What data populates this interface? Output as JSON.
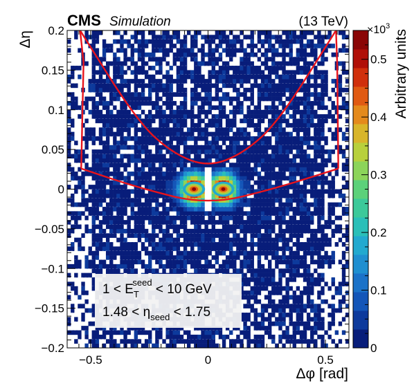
{
  "header": {
    "experiment": "CMS",
    "tag": "Simulation",
    "energy": "(13 TeV)"
  },
  "legend_box": {
    "line1": {
      "pre": "1 < E",
      "sub": "T",
      "sup": "seed",
      "post": " < 10 GeV"
    },
    "line2": {
      "pre": "1.48 < η",
      "sub": "seed",
      "post": " < 1.75"
    }
  },
  "colorbar": {
    "label": "Arbitrary units",
    "multiplier": "×10",
    "multiplier_exp": "3",
    "ticks": [
      "0",
      "0.1",
      "0.2",
      "0.3",
      "0.4",
      "0.5"
    ],
    "tick_values": [
      0,
      0.1,
      0.2,
      0.3,
      0.4,
      0.5
    ],
    "range": [
      0,
      0.55
    ],
    "colors": [
      "#081d7a",
      "#0d3a9c",
      "#1456b8",
      "#1b72c8",
      "#1f8fd0",
      "#22a9cf",
      "#2abfb8",
      "#3cc99a",
      "#5cd17a",
      "#8cd45a",
      "#b8d03c",
      "#d8b52a",
      "#e48a1c",
      "#e05a12",
      "#d0300c",
      "#b01008",
      "#8a0606"
    ]
  },
  "chart_data": {
    "type": "heatmap",
    "xlabel": "Δφ [rad]",
    "ylabel": "Δη",
    "xlim": [
      -0.6,
      0.6
    ],
    "ylim": [
      -0.2,
      0.2
    ],
    "xticks": [
      "−0.5",
      "0",
      "0.5"
    ],
    "xtick_values": [
      -0.5,
      0,
      0.5
    ],
    "yticks": [
      "−0.2",
      "−0.15",
      "−0.1",
      "−0.05",
      "0",
      "0.05",
      "0.1",
      "0.15",
      "0.2"
    ],
    "ytick_values": [
      -0.2,
      -0.15,
      -0.1,
      -0.05,
      0,
      0.05,
      0.1,
      0.15,
      0.2
    ],
    "hotspots": [
      {
        "x": -0.06,
        "y": 0.0,
        "value": 0.55
      },
      {
        "x": 0.065,
        "y": 0.0,
        "value": 0.55
      }
    ],
    "window_outline": {
      "top_left": [
        -0.545,
        0.2
      ],
      "top_right": [
        0.545,
        0.2
      ],
      "upper_curve": [
        [
          -0.545,
          0.2
        ],
        [
          -0.3,
          0.085
        ],
        [
          -0.15,
          0.045
        ],
        [
          0,
          0.028
        ],
        [
          0.15,
          0.045
        ],
        [
          0.3,
          0.085
        ],
        [
          0.545,
          0.2
        ]
      ],
      "outer_left": [
        [
          -0.545,
          0.2
        ],
        [
          -0.53,
          0.16
        ],
        [
          -0.54,
          0.026
        ]
      ],
      "outer_right": [
        [
          0.545,
          0.2
        ],
        [
          0.55,
          0.16
        ],
        [
          0.555,
          0.026
        ]
      ],
      "lower_curve": [
        [
          -0.54,
          0.026
        ],
        [
          -0.3,
          0.002
        ],
        [
          0,
          -0.02
        ],
        [
          0.3,
          0.002
        ],
        [
          0.555,
          0.026
        ]
      ]
    }
  }
}
